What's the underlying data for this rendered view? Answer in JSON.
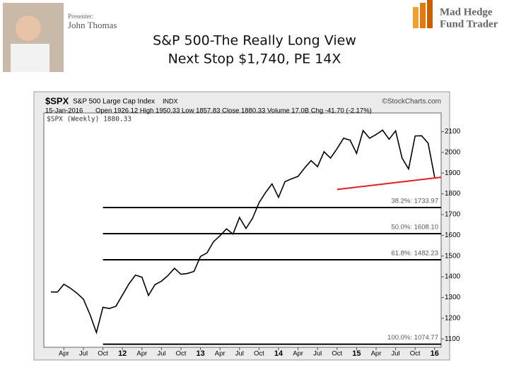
{
  "slide": {
    "presenter_label": "Presenter:",
    "presenter_name": "John Thomas",
    "title": [
      "S&P 500-The Really Long View",
      "Next Stop $1,740, PE 14X"
    ],
    "logo": [
      "Mad Hedge",
      "Fund Trader"
    ]
  },
  "chart_data": {
    "type": "line",
    "symbol": "$SPX",
    "name": "S&P 500 Large Cap Index",
    "exchange": "INDX",
    "source": "©StockCharts.com",
    "date": "15-Jan-2016",
    "quote": "Open 1926.12 High 1950.33 Low 1857.83 Close 1880.33 Volume 17.0B Chg -41.70 (-2.17%)",
    "legend": "$SPX (Weekly) 1880.33",
    "categories": [
      null,
      null,
      "Apr",
      null,
      null,
      "Jul",
      null,
      null,
      "Oct",
      null,
      null,
      "12",
      null,
      null,
      "Apr",
      null,
      null,
      "Jul",
      null,
      null,
      "Oct",
      null,
      null,
      "13",
      null,
      null,
      "Apr",
      null,
      null,
      "Jul",
      null,
      null,
      "Oct",
      null,
      null,
      "14",
      null,
      null,
      "Apr",
      null,
      null,
      "Jul",
      null,
      null,
      "Oct",
      null,
      null,
      "15",
      null,
      null,
      "Apr",
      null,
      null,
      "Jul",
      null,
      null,
      "Oct",
      null,
      null,
      "16"
    ],
    "series": [
      {
        "name": "$SPX",
        "color": "#000000",
        "values": [
          1327,
          1326,
          1364,
          1345,
          1321,
          1292,
          1219,
          1131,
          1253,
          1247,
          1258,
          1312,
          1366,
          1408,
          1398,
          1310,
          1362,
          1379,
          1406,
          1441,
          1412,
          1416,
          1426,
          1498,
          1515,
          1569,
          1598,
          1631,
          1606,
          1686,
          1633,
          1682,
          1757,
          1806,
          1848,
          1783,
          1859,
          1872,
          1884,
          1924,
          1960,
          1931,
          2003,
          1972,
          2018,
          2068,
          2059,
          1995,
          2105,
          2068,
          2086,
          2107,
          2063,
          2104,
          1972,
          1920,
          2079,
          2080,
          2044,
          1880
        ]
      }
    ],
    "levels": [
      {
        "value": 1733.97,
        "label": "38.2%: 1733.97"
      },
      {
        "value": 1608.1,
        "label": "50.0%: 1608.10"
      },
      {
        "value": 1482.23,
        "label": "61.8%: 1482.23"
      },
      {
        "value": 1074.77,
        "label": "100.0%: 1074.77"
      }
    ],
    "levels_start": 8,
    "trendline": {
      "color": "#e02020",
      "start": [
        44,
        1821
      ],
      "end": [
        59,
        1880
      ]
    },
    "ylim": [
      1060,
      2190
    ],
    "yticks": [
      1100,
      1200,
      1300,
      1400,
      1500,
      1600,
      1700,
      1800,
      1900,
      2000,
      2100
    ]
  }
}
